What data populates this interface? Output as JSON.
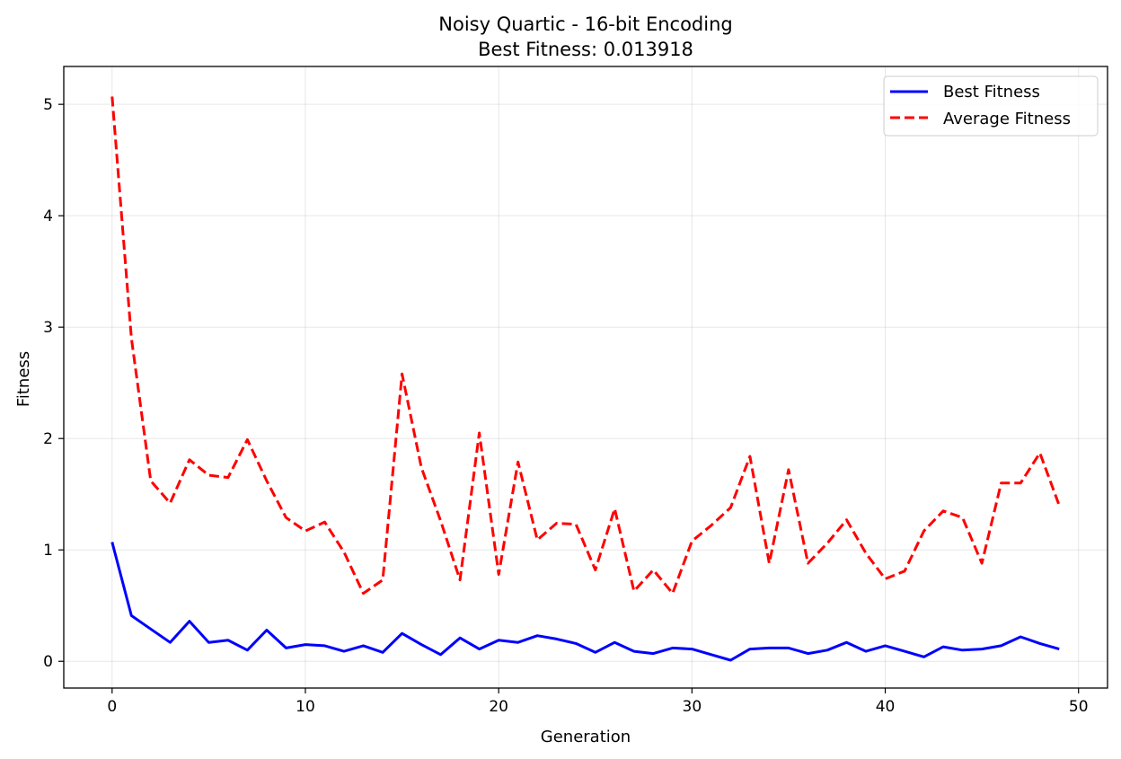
{
  "chart_data": {
    "type": "line",
    "title": "Noisy Quartic - 16-bit Encoding",
    "subtitle": "Best Fitness: 0.013918",
    "xlabel": "Generation",
    "ylabel": "Fitness",
    "xlim": [
      -2.5,
      51.5
    ],
    "ylim": [
      -0.24,
      5.34
    ],
    "xticks": [
      0,
      10,
      20,
      30,
      40,
      50
    ],
    "yticks": [
      0,
      1,
      2,
      3,
      4,
      5
    ],
    "grid": true,
    "legend_position": "top-right",
    "x": [
      0,
      1,
      2,
      3,
      4,
      5,
      6,
      7,
      8,
      9,
      10,
      11,
      12,
      13,
      14,
      15,
      16,
      17,
      18,
      19,
      20,
      21,
      22,
      23,
      24,
      25,
      26,
      27,
      28,
      29,
      30,
      31,
      32,
      33,
      34,
      35,
      36,
      37,
      38,
      39,
      40,
      41,
      42,
      43,
      44,
      45,
      46,
      47,
      48,
      49
    ],
    "series": [
      {
        "name": "Best Fitness",
        "color": "#0000ff",
        "style": "solid",
        "values": [
          1.07,
          0.41,
          0.29,
          0.17,
          0.36,
          0.17,
          0.19,
          0.1,
          0.28,
          0.12,
          0.15,
          0.14,
          0.09,
          0.14,
          0.08,
          0.25,
          0.15,
          0.06,
          0.21,
          0.11,
          0.19,
          0.17,
          0.23,
          0.2,
          0.16,
          0.08,
          0.17,
          0.09,
          0.07,
          0.12,
          0.11,
          0.06,
          0.01,
          0.11,
          0.12,
          0.12,
          0.07,
          0.1,
          0.17,
          0.09,
          0.14,
          0.09,
          0.04,
          0.13,
          0.1,
          0.11,
          0.14,
          0.22,
          0.16,
          0.11
        ]
      },
      {
        "name": "Average Fitness",
        "color": "#ff0000",
        "style": "dashed",
        "values": [
          5.07,
          2.9,
          1.62,
          1.42,
          1.81,
          1.67,
          1.65,
          1.99,
          1.62,
          1.29,
          1.17,
          1.25,
          0.98,
          0.61,
          0.73,
          2.58,
          1.74,
          1.26,
          0.73,
          2.05,
          0.78,
          1.79,
          1.09,
          1.24,
          1.23,
          0.82,
          1.37,
          0.63,
          0.82,
          0.61,
          1.08,
          1.22,
          1.38,
          1.84,
          0.88,
          1.72,
          0.88,
          1.06,
          1.27,
          0.97,
          0.74,
          0.81,
          1.17,
          1.35,
          1.29,
          0.88,
          1.6,
          1.6,
          1.87,
          1.4
        ]
      }
    ]
  }
}
